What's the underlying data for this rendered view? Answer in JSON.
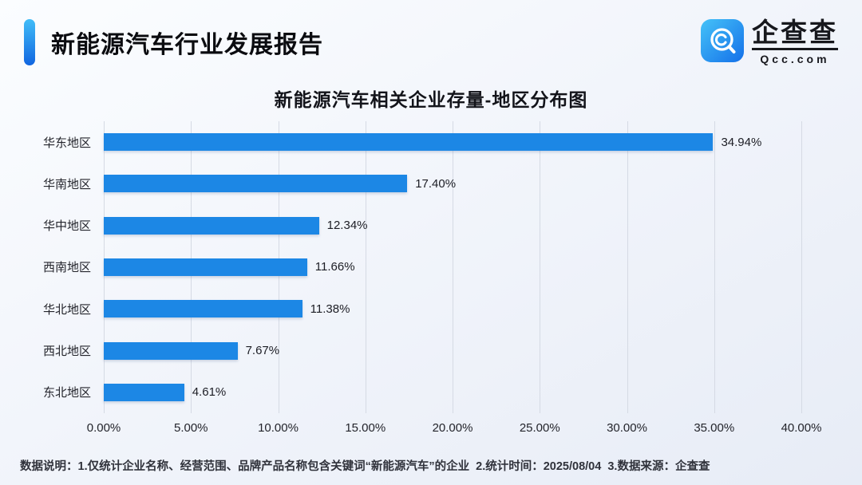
{
  "header": {
    "title": "新能源汽车行业发展报告",
    "logo": {
      "name": "企查查",
      "domain": "Qcc.com"
    }
  },
  "chart_data": {
    "type": "bar",
    "orientation": "horizontal",
    "title": "新能源汽车相关企业存量-地区分布图",
    "categories": [
      "华东地区",
      "华南地区",
      "华中地区",
      "西南地区",
      "华北地区",
      "西北地区",
      "东北地区"
    ],
    "values": [
      34.94,
      17.4,
      12.34,
      11.66,
      11.38,
      7.67,
      4.61
    ],
    "value_labels": [
      "34.94%",
      "17.40%",
      "12.34%",
      "11.66%",
      "11.38%",
      "7.67%",
      "4.61%"
    ],
    "x_ticks": [
      "0.00%",
      "5.00%",
      "10.00%",
      "15.00%",
      "20.00%",
      "25.00%",
      "30.00%",
      "35.00%",
      "40.00%"
    ],
    "xlim": [
      0,
      40
    ],
    "xlabel": "",
    "ylabel": "",
    "grid": "vertical",
    "legend": "none",
    "bar_color": "#1c87e5"
  },
  "footer": {
    "note": "数据说明：1.仅统计企业名称、经营范围、品牌产品名称包含关键词“新能源汽车”的企业  2.统计时间：2025/08/04  3.数据来源：企查查"
  },
  "colors": {
    "bar": "#1c87e5",
    "accent_gradient_start": "#41bdf8",
    "accent_gradient_end": "#1166e0",
    "logo_gradient_start": "#45c2f8",
    "logo_gradient_end": "#1470e9",
    "gridline": "#d5dae4",
    "background": "#eff3f9"
  }
}
